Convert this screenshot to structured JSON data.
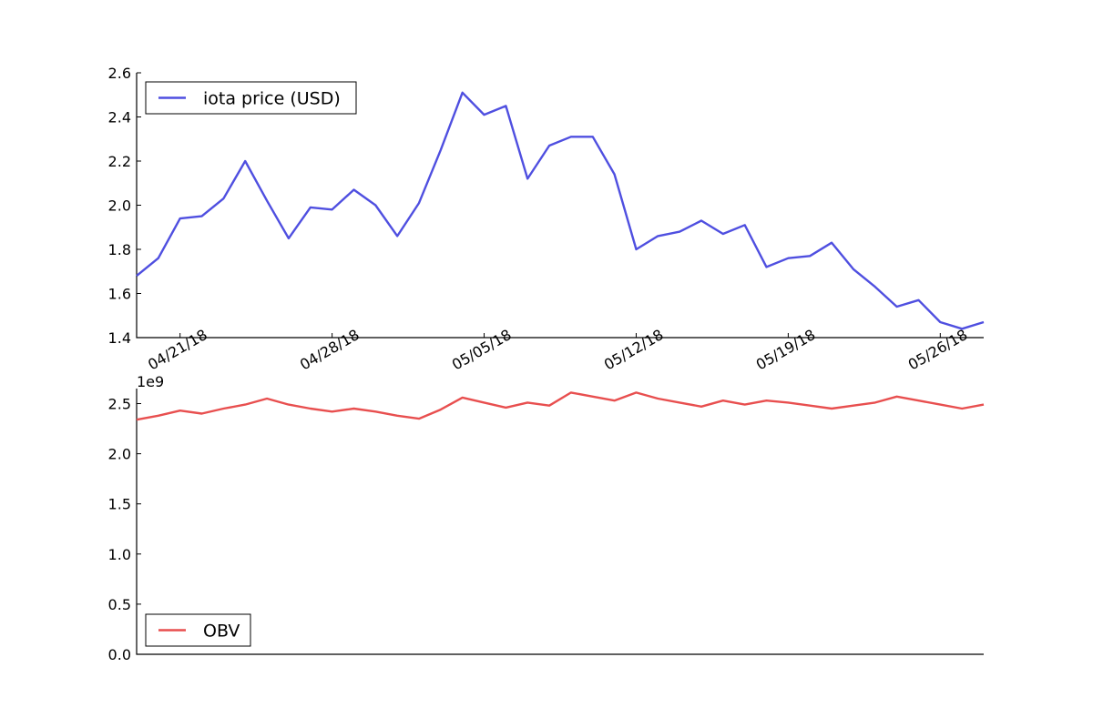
{
  "chart_data": [
    {
      "type": "line",
      "title": "",
      "xlabel": "",
      "ylabel": "",
      "ylim": [
        1.4,
        2.6
      ],
      "yticks": [
        "1.4",
        "1.6",
        "1.8",
        "2.0",
        "2.2",
        "2.4",
        "2.6"
      ],
      "xtick_labels": [
        "04/21/18",
        "04/28/18",
        "05/05/18",
        "05/12/18",
        "05/19/18",
        "05/26/18"
      ],
      "legend_position": "upper-left",
      "grid": false,
      "series": [
        {
          "name": "iota price (USD)",
          "color": "#4f4fe0",
          "x": [
            "2018-04-19",
            "2018-04-20",
            "2018-04-21",
            "2018-04-22",
            "2018-04-23",
            "2018-04-24",
            "2018-04-25",
            "2018-04-26",
            "2018-04-27",
            "2018-04-28",
            "2018-04-29",
            "2018-04-30",
            "2018-05-01",
            "2018-05-02",
            "2018-05-03",
            "2018-05-04",
            "2018-05-05",
            "2018-05-06",
            "2018-05-07",
            "2018-05-08",
            "2018-05-09",
            "2018-05-10",
            "2018-05-11",
            "2018-05-12",
            "2018-05-13",
            "2018-05-14",
            "2018-05-15",
            "2018-05-16",
            "2018-05-17",
            "2018-05-18",
            "2018-05-19",
            "2018-05-20",
            "2018-05-21",
            "2018-05-22",
            "2018-05-23",
            "2018-05-24",
            "2018-05-25",
            "2018-05-26",
            "2018-05-27",
            "2018-05-28"
          ],
          "values": [
            1.68,
            1.76,
            1.94,
            1.95,
            2.03,
            2.2,
            2.02,
            1.85,
            1.99,
            1.98,
            2.07,
            2.0,
            1.86,
            2.01,
            2.25,
            2.51,
            2.41,
            2.45,
            2.12,
            2.27,
            2.31,
            2.31,
            2.14,
            1.8,
            1.86,
            1.88,
            1.93,
            1.87,
            1.91,
            1.72,
            1.76,
            1.77,
            1.83,
            1.71,
            1.63,
            1.54,
            1.57,
            1.47,
            1.44,
            1.47
          ]
        }
      ]
    },
    {
      "type": "line",
      "title": "",
      "xlabel": "",
      "ylabel": "",
      "ylim": [
        0.0,
        2.65
      ],
      "yticks": [
        "0.0",
        "0.5",
        "1.0",
        "1.5",
        "2.0",
        "2.5"
      ],
      "y_offset_label": "1e9",
      "legend_position": "lower-left",
      "grid": false,
      "series": [
        {
          "name": "OBV",
          "color": "#e84f4f",
          "x": [
            "2018-04-19",
            "2018-04-20",
            "2018-04-21",
            "2018-04-22",
            "2018-04-23",
            "2018-04-24",
            "2018-04-25",
            "2018-04-26",
            "2018-04-27",
            "2018-04-28",
            "2018-04-29",
            "2018-04-30",
            "2018-05-01",
            "2018-05-02",
            "2018-05-03",
            "2018-05-04",
            "2018-05-05",
            "2018-05-06",
            "2018-05-07",
            "2018-05-08",
            "2018-05-09",
            "2018-05-10",
            "2018-05-11",
            "2018-05-12",
            "2018-05-13",
            "2018-05-14",
            "2018-05-15",
            "2018-05-16",
            "2018-05-17",
            "2018-05-18",
            "2018-05-19",
            "2018-05-20",
            "2018-05-21",
            "2018-05-22",
            "2018-05-23",
            "2018-05-24",
            "2018-05-25",
            "2018-05-26",
            "2018-05-27",
            "2018-05-28"
          ],
          "values": [
            2.34,
            2.38,
            2.43,
            2.4,
            2.45,
            2.49,
            2.55,
            2.49,
            2.45,
            2.42,
            2.45,
            2.42,
            2.38,
            2.35,
            2.44,
            2.56,
            2.51,
            2.46,
            2.51,
            2.48,
            2.61,
            2.57,
            2.53,
            2.61,
            2.55,
            2.51,
            2.47,
            2.53,
            2.49,
            2.53,
            2.51,
            2.48,
            2.45,
            2.48,
            2.51,
            2.57,
            2.53,
            2.49,
            2.45,
            2.49
          ]
        }
      ]
    }
  ]
}
